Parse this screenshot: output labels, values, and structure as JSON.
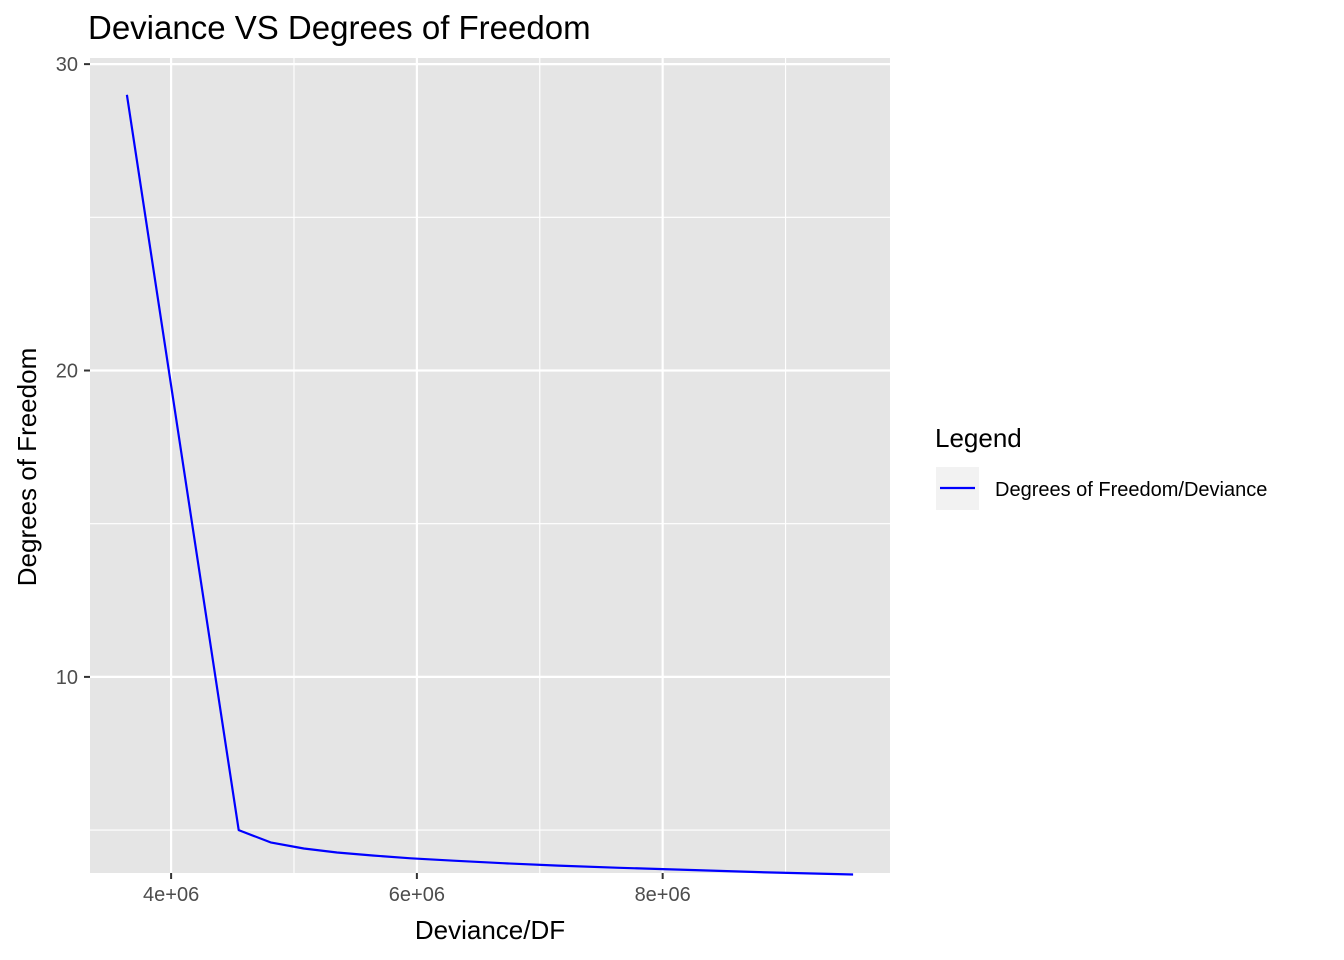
{
  "chart_data": {
    "type": "line",
    "title": "Deviance VS Degrees of Freedom",
    "xlabel": "Deviance/DF",
    "ylabel": "Degrees of Freedom",
    "xlim": [
      3340000,
      9850000
    ],
    "ylim": [
      3.6,
      30.2
    ],
    "x_ticks": [
      4000000,
      6000000,
      8000000
    ],
    "x_tick_labels": [
      "4e+06",
      "6e+06",
      "8e+06"
    ],
    "x_minor": [
      5000000,
      7000000,
      9000000
    ],
    "y_ticks": [
      10,
      20,
      30
    ],
    "y_tick_labels": [
      "10",
      "20",
      "30"
    ],
    "y_minor": [
      5,
      15,
      25
    ],
    "grid": true,
    "legend": {
      "title": "Legend",
      "placement": "right",
      "entries": [
        "Degrees of Freedom/Deviance"
      ]
    },
    "series": [
      {
        "name": "Degrees of Freedom/Deviance",
        "color": "#0000ff",
        "points": [
          [
            3640000,
            29
          ],
          [
            4550000,
            5
          ],
          [
            4810000,
            4.6
          ],
          [
            5080000,
            4.4
          ],
          [
            5350000,
            4.27
          ],
          [
            5640000,
            4.17
          ],
          [
            5950000,
            4.08
          ],
          [
            6300000,
            4.0
          ],
          [
            6700000,
            3.92
          ],
          [
            7150000,
            3.84
          ],
          [
            7650000,
            3.77
          ],
          [
            8200000,
            3.7
          ],
          [
            8850000,
            3.62
          ],
          [
            9550000,
            3.55
          ]
        ]
      }
    ]
  }
}
